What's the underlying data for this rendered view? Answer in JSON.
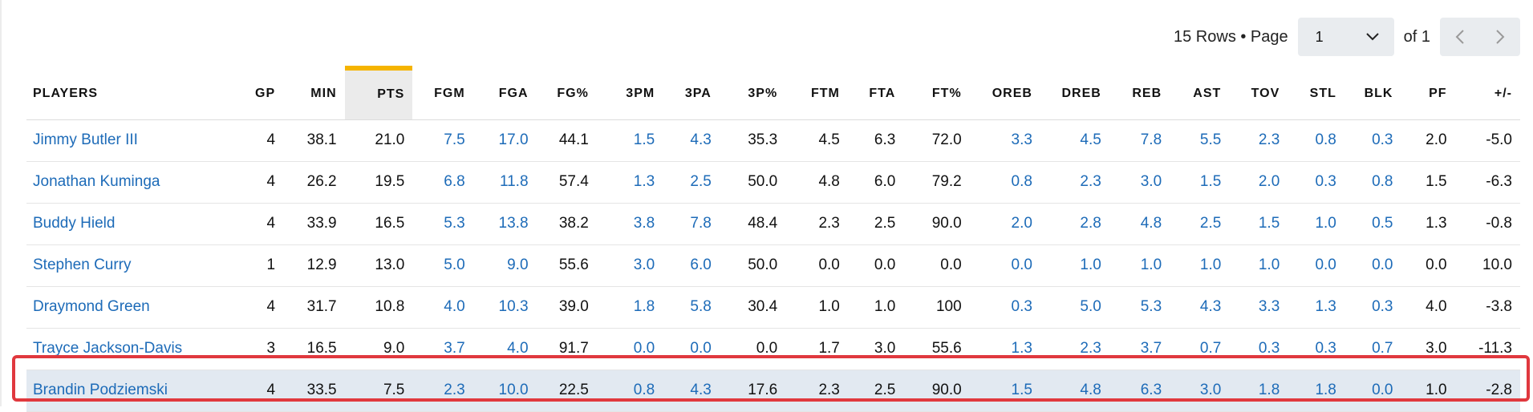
{
  "pagination": {
    "rows_text": "15 Rows • Page",
    "page_value": "1",
    "of_text": "of 1"
  },
  "columns": [
    "PLAYERS",
    "GP",
    "MIN",
    "PTS",
    "FGM",
    "FGA",
    "FG%",
    "3PM",
    "3PA",
    "3P%",
    "FTM",
    "FTA",
    "FT%",
    "OREB",
    "DREB",
    "REB",
    "AST",
    "TOV",
    "STL",
    "BLK",
    "PF",
    "+/-"
  ],
  "rows": [
    {
      "name": "Jimmy Butler III",
      "stats": [
        "4",
        "38.1",
        "21.0",
        "7.5",
        "17.0",
        "44.1",
        "1.5",
        "4.3",
        "35.3",
        "4.5",
        "6.3",
        "72.0",
        "3.3",
        "4.5",
        "7.8",
        "5.5",
        "2.3",
        "0.8",
        "0.3",
        "2.0",
        "-5.0"
      ]
    },
    {
      "name": "Jonathan Kuminga",
      "stats": [
        "4",
        "26.2",
        "19.5",
        "6.8",
        "11.8",
        "57.4",
        "1.3",
        "2.5",
        "50.0",
        "4.8",
        "6.0",
        "79.2",
        "0.8",
        "2.3",
        "3.0",
        "1.5",
        "2.0",
        "0.3",
        "0.8",
        "1.5",
        "-6.3"
      ]
    },
    {
      "name": "Buddy Hield",
      "stats": [
        "4",
        "33.9",
        "16.5",
        "5.3",
        "13.8",
        "38.2",
        "3.8",
        "7.8",
        "48.4",
        "2.3",
        "2.5",
        "90.0",
        "2.0",
        "2.8",
        "4.8",
        "2.5",
        "1.5",
        "1.0",
        "0.5",
        "1.3",
        "-0.8"
      ]
    },
    {
      "name": "Stephen Curry",
      "stats": [
        "1",
        "12.9",
        "13.0",
        "5.0",
        "9.0",
        "55.6",
        "3.0",
        "6.0",
        "50.0",
        "0.0",
        "0.0",
        "0.0",
        "0.0",
        "1.0",
        "1.0",
        "1.0",
        "1.0",
        "0.0",
        "0.0",
        "0.0",
        "10.0"
      ]
    },
    {
      "name": "Draymond Green",
      "stats": [
        "4",
        "31.7",
        "10.8",
        "4.0",
        "10.3",
        "39.0",
        "1.8",
        "5.8",
        "30.4",
        "1.0",
        "1.0",
        "100",
        "0.3",
        "5.0",
        "5.3",
        "4.3",
        "3.3",
        "1.3",
        "0.3",
        "4.0",
        "-3.8"
      ]
    },
    {
      "name": "Trayce Jackson-Davis",
      "stats": [
        "3",
        "16.5",
        "9.0",
        "3.7",
        "4.0",
        "91.7",
        "0.0",
        "0.0",
        "0.0",
        "1.7",
        "3.0",
        "55.6",
        "1.3",
        "2.3",
        "3.7",
        "0.7",
        "0.3",
        "0.3",
        "0.7",
        "3.0",
        "-11.3"
      ]
    },
    {
      "name": "Brandin Podziemski",
      "stats": [
        "4",
        "33.5",
        "7.5",
        "2.3",
        "10.0",
        "22.5",
        "0.8",
        "4.3",
        "17.6",
        "2.3",
        "2.5",
        "90.0",
        "1.5",
        "4.8",
        "6.3",
        "3.0",
        "1.8",
        "1.8",
        "0.0",
        "1.0",
        "-2.8"
      ]
    }
  ],
  "colors": {
    "link": "#1d6bb8",
    "sort_accent": "#f5b400",
    "highlight_row": "#e2e9f1",
    "highlight_border": "#e0383e"
  }
}
